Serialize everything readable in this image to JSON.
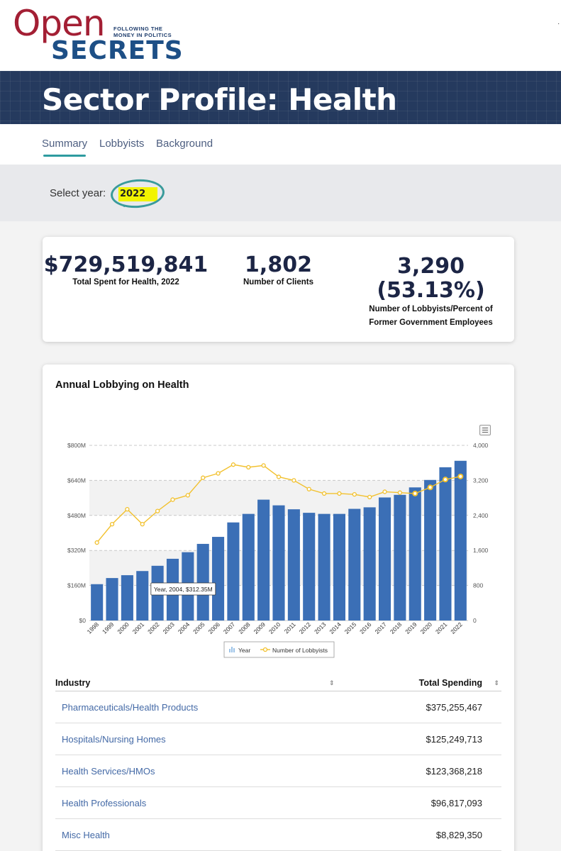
{
  "logo": {
    "open": "Open",
    "secrets": "SECRETS",
    "tagline_1": "FOLLOWING THE",
    "tagline_2": "MONEY IN POLITICS"
  },
  "page_title": "Sector Profile: Health",
  "tabs": [
    {
      "label": "Summary",
      "active": true
    },
    {
      "label": "Lobbyists",
      "active": false
    },
    {
      "label": "Background",
      "active": false
    }
  ],
  "year_selector": {
    "label": "Select year:",
    "selected": "2022"
  },
  "stats": {
    "total_spent": {
      "value": "$729,519,841",
      "label": "Total Spent for Health, 2022"
    },
    "clients": {
      "value": "1,802",
      "label": "Number of Clients"
    },
    "lobbyists": {
      "value": "3,290",
      "value_pct": "(53.13%)",
      "label_1": "Number of Lobbyists/Percent of",
      "label_2": "Former Government Employees"
    }
  },
  "chart_data": {
    "type": "bar",
    "title": "Annual Lobbying on Health",
    "categories": [
      "1998",
      "1999",
      "2000",
      "2001",
      "2002",
      "2003",
      "2004",
      "2005",
      "2006",
      "2007",
      "2008",
      "2009",
      "2010",
      "2011",
      "2012",
      "2013",
      "2014",
      "2015",
      "2016",
      "2017",
      "2018",
      "2019",
      "2020",
      "2021",
      "2022"
    ],
    "series": [
      {
        "name": "Year",
        "type": "bar",
        "axis": "left",
        "unit": "$M",
        "values": [
          166,
          194,
          207,
          226,
          250,
          282,
          312,
          350,
          382,
          448,
          487,
          552,
          526,
          508,
          492,
          487,
          487,
          510,
          517,
          562,
          574,
          608,
          642,
          700,
          729.5
        ]
      },
      {
        "name": "Number of Lobbyists",
        "type": "line",
        "axis": "right",
        "values": [
          1780,
          2200,
          2540,
          2200,
          2500,
          2760,
          2860,
          3260,
          3360,
          3560,
          3500,
          3540,
          3280,
          3200,
          3000,
          2900,
          2900,
          2880,
          2820,
          2940,
          2920,
          2900,
          3040,
          3220,
          3290
        ]
      }
    ],
    "y_left": {
      "ticks": [
        "$0",
        "$160M",
        "$320M",
        "$480M",
        "$640M",
        "$800M"
      ],
      "range": [
        0,
        800
      ]
    },
    "y_right": {
      "ticks": [
        "0",
        "800",
        "1,600",
        "2,400",
        "3,200",
        "4,000"
      ],
      "range": [
        0,
        4000
      ]
    },
    "tooltip": {
      "text": "Year, 2004, $312.35M",
      "index": 6
    },
    "legend": [
      {
        "label": "Year",
        "icon": "bar-chart-icon"
      },
      {
        "label": "Number of Lobbyists",
        "icon": "line-marker-icon"
      }
    ],
    "legend_position": "bottom-center"
  },
  "table": {
    "headers": {
      "industry": "Industry",
      "total": "Total Spending"
    },
    "rows": [
      {
        "industry": "Pharmaceuticals/Health Products",
        "total": "$375,255,467"
      },
      {
        "industry": "Hospitals/Nursing Homes",
        "total": "$125,249,713"
      },
      {
        "industry": "Health Services/HMOs",
        "total": "$123,368,218"
      },
      {
        "industry": "Health Professionals",
        "total": "$96,817,093"
      },
      {
        "industry": "Misc Health",
        "total": "$8,829,350"
      }
    ]
  },
  "colors": {
    "bar": "#3b6fb6",
    "line": "#f2c12e",
    "accent": "#2d9b9f",
    "hero": "#253a5e",
    "link": "#4369a6"
  }
}
